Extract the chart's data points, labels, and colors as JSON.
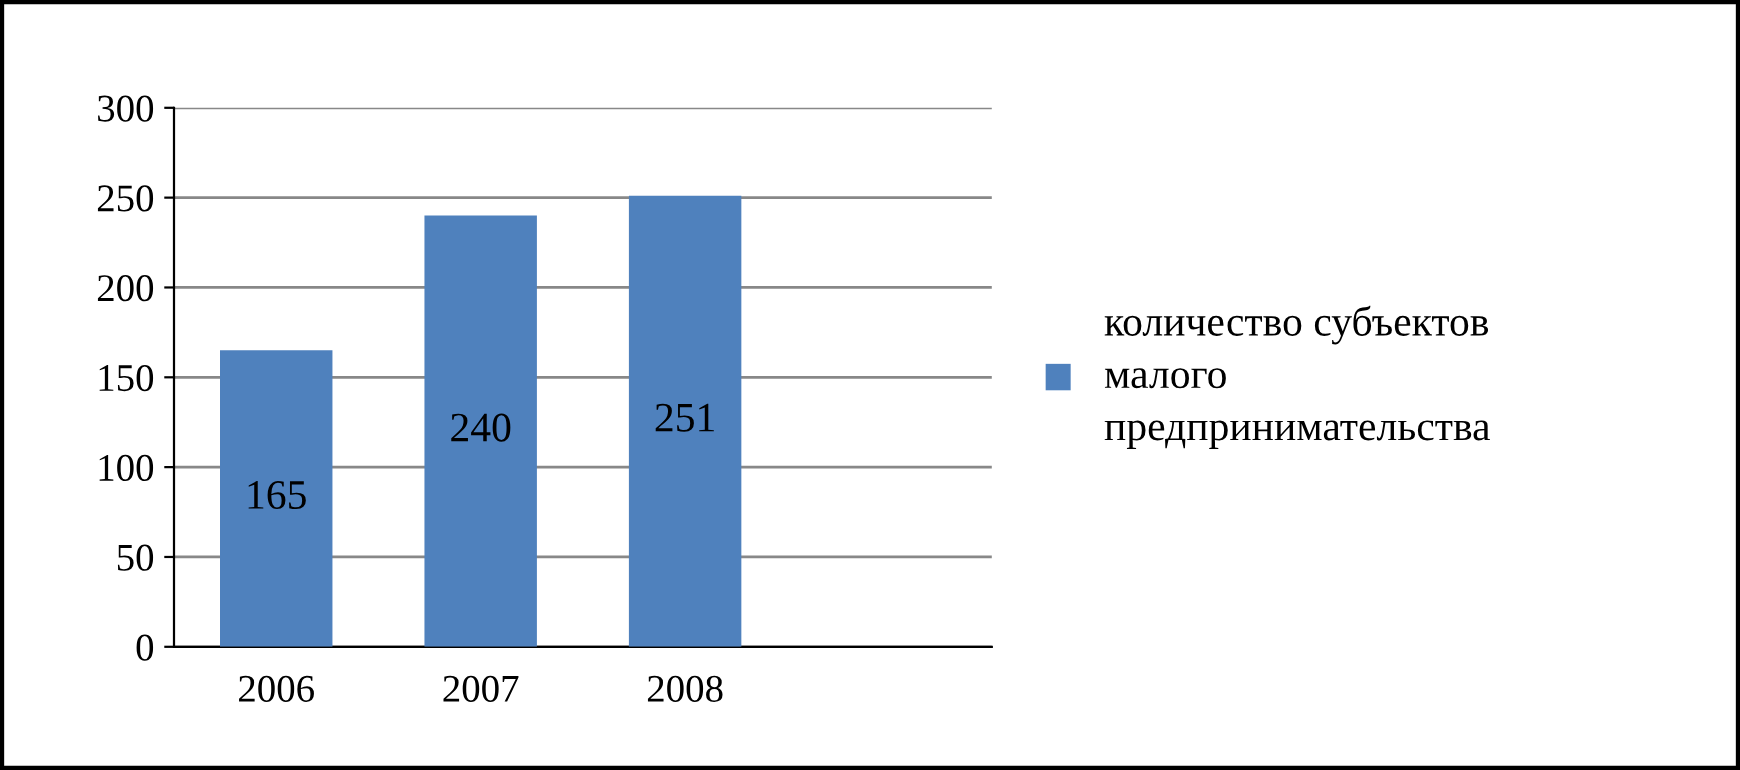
{
  "chart_data": {
    "type": "bar",
    "categories": [
      "2006",
      "2007",
      "2008",
      null
    ],
    "series": [
      {
        "name": "количество субъектов малого предпринимательства",
        "color": "#4f81bd",
        "values": [
          165,
          240,
          251,
          null
        ]
      }
    ],
    "ylim": [
      0,
      300
    ],
    "yticks": [
      0,
      50,
      100,
      150,
      200,
      250,
      300
    ],
    "grid": "y",
    "legend": "right",
    "data_labels": true
  }
}
